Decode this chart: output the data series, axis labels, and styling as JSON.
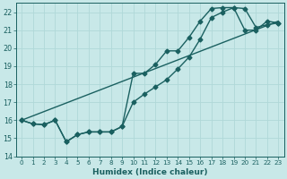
{
  "xlabel": "Humidex (Indice chaleur)",
  "background_color": "#c8e8e8",
  "grid_color": "#b0d8d8",
  "line_color": "#1a6060",
  "xlim": [
    -0.5,
    23.5
  ],
  "ylim": [
    14,
    22.5
  ],
  "yticks": [
    14,
    15,
    16,
    17,
    18,
    19,
    20,
    21,
    22
  ],
  "xticks": [
    0,
    1,
    2,
    3,
    4,
    5,
    6,
    7,
    8,
    9,
    10,
    11,
    12,
    13,
    14,
    15,
    16,
    17,
    18,
    19,
    20,
    21,
    22,
    23
  ],
  "line1_x": [
    0,
    1,
    2,
    3,
    4,
    5,
    6,
    7,
    8,
    9,
    10,
    11,
    12,
    13,
    14,
    15,
    16,
    17,
    18,
    19,
    20,
    21,
    22,
    23
  ],
  "line1_y": [
    16.0,
    15.8,
    15.75,
    16.0,
    14.8,
    15.2,
    15.35,
    15.35,
    15.35,
    15.65,
    17.0,
    17.45,
    17.85,
    18.25,
    18.85,
    19.5,
    20.5,
    21.7,
    22.0,
    22.25,
    22.2,
    21.15,
    21.3,
    21.4
  ],
  "line2_x": [
    0,
    1,
    2,
    3,
    4,
    5,
    6,
    7,
    8,
    9,
    10,
    11,
    12,
    13,
    14,
    15,
    16,
    17,
    18,
    19,
    20,
    21,
    22,
    23
  ],
  "line2_y": [
    16.0,
    15.8,
    15.75,
    16.0,
    14.8,
    15.2,
    15.35,
    15.35,
    15.35,
    15.65,
    18.6,
    18.6,
    19.1,
    19.85,
    19.85,
    20.6,
    21.5,
    22.2,
    22.25,
    22.25,
    21.0,
    21.0,
    21.5,
    21.4
  ],
  "line3_x": [
    0,
    23
  ],
  "line3_y": [
    16.0,
    21.5
  ],
  "marker": "D",
  "markersize": 2.5,
  "linewidth": 1.0
}
